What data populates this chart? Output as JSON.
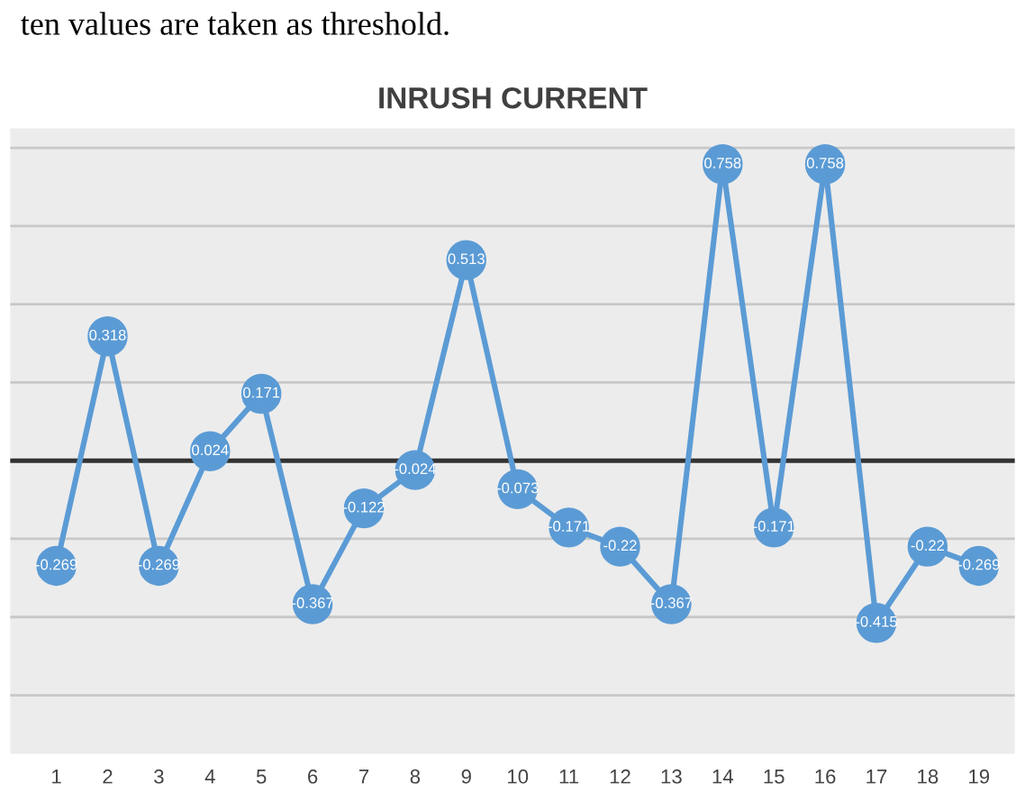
{
  "chart_data": {
    "type": "line",
    "title": "INRUSH CURRENT",
    "annotations": [
      "ten values are taken as threshold."
    ],
    "categories": [
      "1",
      "2",
      "3",
      "4",
      "5",
      "6",
      "7",
      "8",
      "9",
      "10",
      "11",
      "12",
      "13",
      "14",
      "15",
      "16",
      "17",
      "18",
      "19"
    ],
    "series": [
      {
        "color": "#5b9bd5",
        "values": [
          -0.269,
          0.318,
          -0.269,
          0.024,
          0.171,
          -0.367,
          -0.122,
          -0.024,
          0.513,
          -0.073,
          -0.171,
          -0.22,
          -0.367,
          0.758,
          -0.171,
          0.758,
          -0.415,
          -0.22,
          -0.269
        ]
      }
    ],
    "ylim": [
      -0.75,
      0.85
    ],
    "yticks": [
      {
        "value": -0.6,
        "label": null
      },
      {
        "value": -0.4,
        "label": null
      },
      {
        "value": -0.2,
        "label": null
      },
      {
        "value": 0,
        "label": null
      },
      {
        "value": 0.2,
        "label": null
      },
      {
        "value": 0.4,
        "label": null
      },
      {
        "value": 0.6,
        "label": null
      },
      {
        "value": 0.8,
        "label": null
      }
    ],
    "tick_labels": "x",
    "grid": "y",
    "marker": "circle",
    "line_style": "solid",
    "data_labels": true,
    "legend": false
  }
}
